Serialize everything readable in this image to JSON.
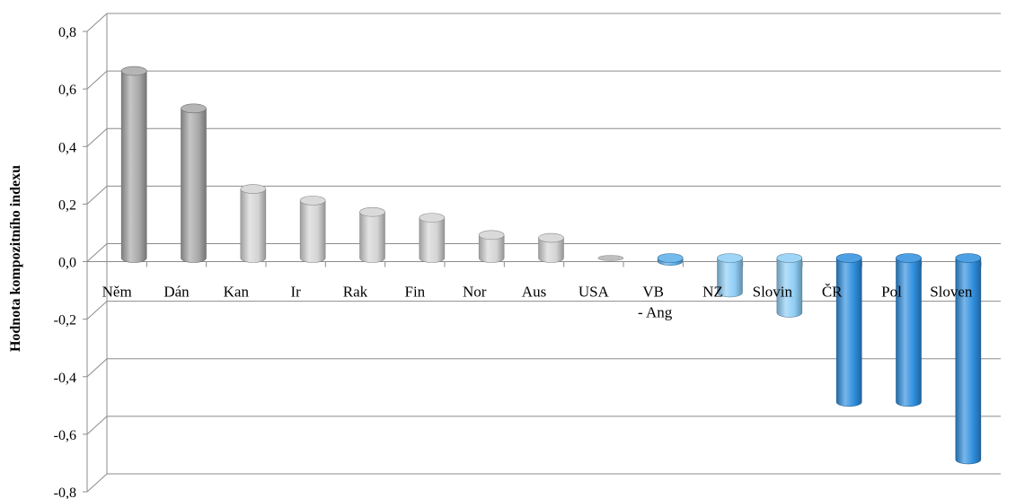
{
  "chart_data": {
    "type": "bar",
    "ylabel": "Hodnota kompozitního indexu",
    "ylim": [
      -0.8,
      0.8
    ],
    "yticks": [
      "0,8",
      "0,6",
      "0,4",
      "0,2",
      "0,0",
      "-0,2",
      "-0,4",
      "-0,6",
      "-0,8"
    ],
    "ytick_values": [
      0.8,
      0.6,
      0.4,
      0.2,
      0.0,
      -0.2,
      -0.4,
      -0.6,
      -0.8
    ],
    "grid": true,
    "legend": "none",
    "categories": [
      {
        "lines": [
          "Něm"
        ]
      },
      {
        "lines": [
          "Dán"
        ]
      },
      {
        "lines": [
          "Kan"
        ]
      },
      {
        "lines": [
          "Ir"
        ]
      },
      {
        "lines": [
          "Rak"
        ]
      },
      {
        "lines": [
          "Fin"
        ]
      },
      {
        "lines": [
          "Nor"
        ]
      },
      {
        "lines": [
          "Aus"
        ]
      },
      {
        "lines": [
          "USA"
        ]
      },
      {
        "lines": [
          "VB",
          "- Ang"
        ]
      },
      {
        "lines": [
          "NZ"
        ]
      },
      {
        "lines": [
          "Slovin"
        ]
      },
      {
        "lines": [
          "ČR"
        ]
      },
      {
        "lines": [
          "Pol"
        ]
      },
      {
        "lines": [
          "Sloven"
        ]
      }
    ],
    "values": [
      0.65,
      0.52,
      0.24,
      0.2,
      0.16,
      0.14,
      0.08,
      0.07,
      0.0,
      -0.01,
      -0.12,
      -0.19,
      -0.5,
      -0.5,
      -0.7
    ],
    "bar_colors": [
      "#a8a8a8",
      "#a8a8a8",
      "#d4d4d4",
      "#d4d4d4",
      "#d4d4d4",
      "#d4d4d4",
      "#d4d4d4",
      "#d4d4d4",
      "#d4d4d4",
      "#5aaeea",
      "#8ecdf5",
      "#8ecdf5",
      "#2f8fdf",
      "#2f8fdf",
      "#2f8fdf"
    ]
  }
}
